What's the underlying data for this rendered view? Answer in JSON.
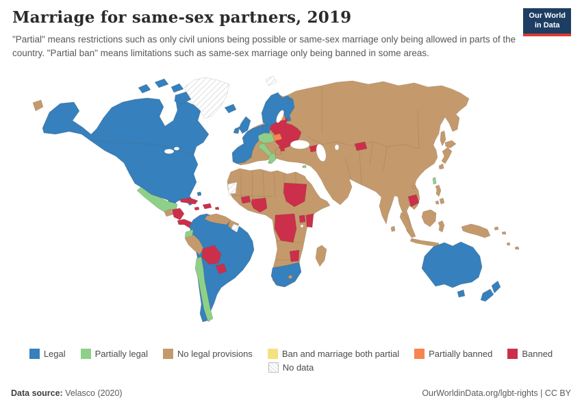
{
  "header": {
    "title": "Marriage for same-sex partners, 2019",
    "subtitle": "\"Partial\" means restrictions such as only civil unions being possible or same-sex marriage only being allowed in parts of the country. \"Partial ban\" means limitations such as same-sex marriage only being banned in some areas.",
    "logo": {
      "line1": "Our World",
      "line2": "in Data"
    }
  },
  "legend": {
    "items": [
      {
        "key": "legal",
        "label": "Legal",
        "color": "#3580bd",
        "row": 1
      },
      {
        "key": "partially_legal",
        "label": "Partially legal",
        "color": "#8ed089",
        "row": 1
      },
      {
        "key": "no_legal_provisions",
        "label": "No legal provisions",
        "color": "#c49a6c",
        "row": 1
      },
      {
        "key": "ban_and_marriage_both_partial",
        "label": "Ban and marriage both partial",
        "color": "#f6e180",
        "row": 1
      },
      {
        "key": "partially_banned",
        "label": "Partially banned",
        "color": "#f7854e",
        "row": 1
      },
      {
        "key": "banned",
        "label": "Banned",
        "color": "#cc2f4a",
        "row": 1
      },
      {
        "key": "no_data",
        "label": "No data",
        "color": null,
        "row": 2
      }
    ]
  },
  "footer": {
    "source_label": "Data source:",
    "source_value": " Velasco (2020)",
    "right_text": "OurWorldinData.org/lgbt-rights | CC BY"
  },
  "chart_data": {
    "type": "choropleth_world_map",
    "title": "Marriage for same-sex partners, 2019",
    "year": 2019,
    "legend_position": "bottom",
    "categories": [
      {
        "key": "legal",
        "label": "Legal",
        "color": "#3580bd"
      },
      {
        "key": "partially_legal",
        "label": "Partially legal",
        "color": "#8ed089"
      },
      {
        "key": "no_legal_provisions",
        "label": "No legal provisions",
        "color": "#c49a6c"
      },
      {
        "key": "ban_and_marriage_both_partial",
        "label": "Ban and marriage both partial",
        "color": "#f6e180"
      },
      {
        "key": "partially_banned",
        "label": "Partially banned",
        "color": "#f7854e"
      },
      {
        "key": "banned",
        "label": "Banned",
        "color": "#cc2f4a"
      },
      {
        "key": "no_data",
        "label": "No data",
        "color": null
      }
    ],
    "countries_by_category": {
      "legal": [
        "Canada",
        "United States",
        "Colombia",
        "Brazil",
        "Argentina",
        "Uruguay",
        "Iceland",
        "Ireland",
        "United Kingdom",
        "Norway",
        "Sweden",
        "Finland",
        "Denmark",
        "Germany",
        "Netherlands",
        "Belgium",
        "France",
        "Spain",
        "Portugal",
        "South Africa",
        "Australia",
        "New Zealand"
      ],
      "partially_legal": [
        "Mexico",
        "Ecuador",
        "Chile",
        "Switzerland",
        "Czechia",
        "Austria",
        "Slovenia",
        "Croatia",
        "Italy",
        "Greece",
        "Cyprus",
        "Taiwan"
      ],
      "no_legal_provisions": [
        "Russia",
        "China",
        "India",
        "Japan",
        "Indonesia",
        "Turkey",
        "Saudi Arabia",
        "Egypt",
        "Venezuela",
        "Peru",
        "Guatemala",
        "most remaining countries of Africa and Asia"
      ],
      "ban_and_marriage_both_partial": [],
      "partially_banned": [
        "Estonia",
        "Hungary",
        "Slovakia"
      ],
      "banned": [
        "Cuba",
        "Haiti",
        "Dominican Republic",
        "Jamaica",
        "Honduras",
        "Nicaragua",
        "Costa Rica",
        "Panama",
        "Bolivia",
        "Paraguay",
        "Poland",
        "Lithuania",
        "Latvia",
        "Belarus",
        "Ukraine",
        "Moldova",
        "Romania",
        "Bulgaria",
        "Serbia",
        "Georgia",
        "Armenia",
        "Kyrgyzstan",
        "Cambodia",
        "Burkina Faso",
        "Nigeria",
        "Sudan",
        "DR Congo",
        "Uganda",
        "Kenya",
        "Zimbabwe"
      ],
      "no_data": [
        "Greenland",
        "Svalbard",
        "Western Sahara",
        "Guyana"
      ]
    },
    "region_categories": {
      "greenland": "no_data",
      "svalbard": "no_data",
      "western-sahara": "no_data",
      "guyana": "no_data",
      "north-america": "legal",
      "arctic-islands-1": "legal",
      "arctic-islands-2": "legal",
      "arctic-islands-3": "legal",
      "baffin-island": "legal",
      "bahamas": "legal",
      "south-america": "legal",
      "south-africa": "legal",
      "australia": "legal",
      "tasmania": "legal",
      "new-zealand-north": "legal",
      "new-zealand-south": "legal",
      "iceland": "legal",
      "united-kingdom": "legal",
      "ireland": "legal",
      "nordics": "legal",
      "denmark": "legal",
      "western-europe": "legal",
      "mexico": "partially_legal",
      "ecuador": "partially_legal",
      "chile": "partially_legal",
      "central-europe": "partially_legal",
      "italy": "partially_legal",
      "sicily": "partially_legal",
      "greece": "partially_legal",
      "cyprus": "partially_legal",
      "taiwan": "partially_legal",
      "eurasia": "no_legal_provisions",
      "africa": "no_legal_provisions",
      "chukotka": "no_legal_provisions",
      "guatemala": "no_legal_provisions",
      "venezuela": "no_legal_provisions",
      "guyanas": "no_legal_provisions",
      "peru": "no_legal_provisions",
      "balkans": "no_legal_provisions",
      "japan-hokkaido": "no_legal_provisions",
      "japan-honshu": "no_legal_provisions",
      "japan-kyushu": "no_legal_provisions",
      "sakhalin": "no_legal_provisions",
      "sri-lanka": "no_legal_provisions",
      "hainan": "no_legal_provisions",
      "philippines-luzon": "no_legal_provisions",
      "philippines-mindanao": "no_legal_provisions",
      "philippines-visayas": "no_legal_provisions",
      "sumatra": "no_legal_provisions",
      "borneo": "no_legal_provisions",
      "java": "no_legal_provisions",
      "sulawesi": "no_legal_provisions",
      "new-guinea": "no_legal_provisions",
      "bismarck": "no_legal_provisions",
      "solomon": "no_legal_provisions",
      "fiji": "no_legal_provisions",
      "vanuatu": "no_legal_provisions",
      "madagascar": "no_legal_provisions",
      "lesotho": "no_legal_provisions",
      "estonia": "partially_banned",
      "hungary-slovakia": "partially_banned",
      "cuba": "banned",
      "hispaniola": "banned",
      "jamaica": "banned",
      "puerto-rico": "banned",
      "honduras-nicaragua": "banned",
      "costa-rica-panama": "banned",
      "bolivia": "banned",
      "paraguay": "banned",
      "eastern-europe": "banned",
      "serbia": "banned",
      "caucasus": "banned",
      "kyrgyzstan": "banned",
      "cambodia": "banned",
      "burkina-faso": "banned",
      "nigeria": "banned",
      "sudan": "banned",
      "dr-congo": "banned",
      "uganda": "banned",
      "kenya": "banned",
      "zimbabwe": "banned"
    }
  }
}
